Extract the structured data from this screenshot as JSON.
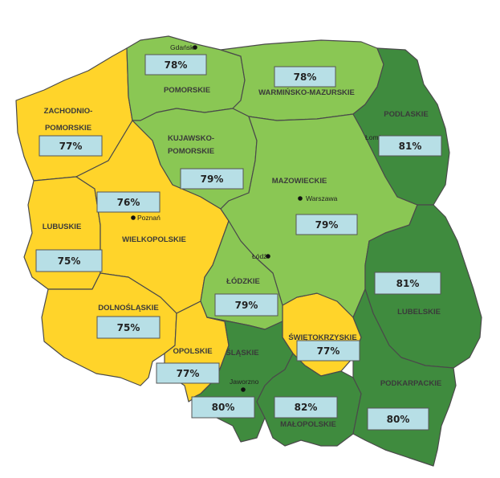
{
  "colors": {
    "yellow": "#ffd42a",
    "light_green": "#8ac754",
    "dark_green": "#3f8b3e",
    "box_fill": "#b7dfe6"
  },
  "regions": {
    "zachodniopomorskie": {
      "name_line1": "ZACHODNIO-",
      "name_line2": "POMORSKIE",
      "pct": "77%"
    },
    "pomorskie": {
      "name": "POMORSKIE",
      "pct": "78%"
    },
    "warminsko": {
      "name": "WARMIŃSKO-MAZURSKIE",
      "pct": "78%"
    },
    "podlaskie": {
      "name": "PODLASKIE",
      "pct": "81%"
    },
    "kujawsko": {
      "name_line1": "KUJAWSKO-",
      "name_line2": "POMORSKIE",
      "pct": "79%"
    },
    "mazowieckie": {
      "name": "MAZOWIECKIE",
      "pct": "79%"
    },
    "lubuskie": {
      "name": "LUBUSKIE",
      "pct": "75%"
    },
    "wielkopolskie": {
      "name": "WIELKOPOLSKIE",
      "pct": "76%"
    },
    "lodzkie": {
      "name": "ŁÓDZKIE",
      "pct": "79%"
    },
    "lubelskie": {
      "name": "LUBELSKIE",
      "pct": "81%"
    },
    "dolnoslaskie": {
      "name": "DOLNOŚLĄSKIE",
      "pct": "75%"
    },
    "opolskie": {
      "name": "OPOLSKIE",
      "pct": "77%"
    },
    "slaskie": {
      "name": "ŚLĄSKIE",
      "pct": "80%"
    },
    "swietokrzyskie": {
      "name": "ŚWIĘTOKRZYSKIE",
      "pct": "77%"
    },
    "malopolskie": {
      "name": "MAŁOPOLSKIE",
      "pct": "82%"
    },
    "podkarpackie": {
      "name": "PODKARPACKIE",
      "pct": "80%"
    }
  },
  "cities": {
    "gdansk": "Gdańsk",
    "lomza": "Łomża",
    "warszawa": "Warszawa",
    "poznan": "Poznań",
    "lodz": "Łódź",
    "jaworzno": "Jaworzno"
  }
}
